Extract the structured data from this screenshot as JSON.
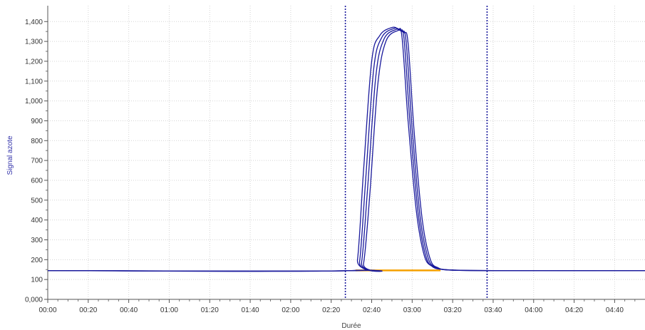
{
  "chart_data": {
    "type": "line",
    "xlabel": "Durée",
    "ylabel": "Signal azote",
    "xlim_seconds": [
      0,
      295
    ],
    "ylim": [
      0,
      1480
    ],
    "x_ticks": [
      "00:00",
      "00:20",
      "00:40",
      "01:00",
      "01:20",
      "01:40",
      "02:00",
      "02:20",
      "02:40",
      "03:00",
      "03:20",
      "03:40",
      "04:00",
      "04:20",
      "04:40"
    ],
    "y_ticks": [
      "0,000",
      "100",
      "200",
      "300",
      "400",
      "500",
      "600",
      "700",
      "800",
      "900",
      "1,000",
      "1,100",
      "1,200",
      "1,300",
      "1,400"
    ],
    "vertical_markers": [
      "02:27",
      "03:37"
    ],
    "grid": true,
    "legend": "none",
    "colors": {
      "signal": "#1a1a9c",
      "baseline": "#f5a000",
      "marker": "#1a1a9c",
      "axis_title": "#3333aa"
    },
    "series": [
      {
        "x": [
          "00:00",
          "02:30",
          "02:33",
          "02:36",
          "02:40",
          "02:44",
          "02:50",
          "02:53",
          "02:55",
          "02:58",
          "03:02",
          "03:06",
          "03:10",
          "03:14",
          "03:20",
          "03:40",
          "04:55"
        ],
        "values": [
          145,
          145,
          200,
          650,
          1200,
          1330,
          1370,
          1360,
          1320,
          900,
          450,
          220,
          165,
          152,
          148,
          145,
          145
        ]
      },
      {
        "x": [
          "00:00",
          "02:31",
          "02:34",
          "02:37",
          "02:41",
          "02:45",
          "02:51",
          "02:54",
          "02:56",
          "02:59",
          "03:03",
          "03:07",
          "03:11",
          "03:15",
          "03:21",
          "03:40",
          "04:55"
        ],
        "values": [
          145,
          145,
          190,
          600,
          1160,
          1320,
          1365,
          1355,
          1310,
          880,
          430,
          210,
          162,
          151,
          147,
          145,
          145
        ]
      },
      {
        "x": [
          "00:00",
          "02:32",
          "02:35",
          "02:38",
          "02:42",
          "02:46",
          "02:52",
          "02:55",
          "02:57",
          "03:00",
          "03:04",
          "03:08",
          "03:12",
          "03:16",
          "03:22",
          "03:40",
          "04:55"
        ],
        "values": [
          145,
          145,
          185,
          560,
          1120,
          1310,
          1360,
          1350,
          1300,
          860,
          410,
          205,
          160,
          150,
          147,
          145,
          145
        ]
      },
      {
        "x": [
          "00:00",
          "02:33",
          "02:36",
          "02:39",
          "02:43",
          "02:47",
          "02:53",
          "02:56",
          "02:58",
          "03:01",
          "03:05",
          "03:09",
          "03:13",
          "03:17",
          "03:23",
          "03:40",
          "04:55"
        ],
        "values": [
          145,
          145,
          180,
          520,
          1080,
          1300,
          1355,
          1345,
          1290,
          840,
          400,
          200,
          158,
          149,
          146,
          145,
          145
        ]
      }
    ],
    "baseline_series": {
      "x": [
        "02:32",
        "03:14"
      ],
      "values": [
        146,
        146
      ]
    }
  }
}
